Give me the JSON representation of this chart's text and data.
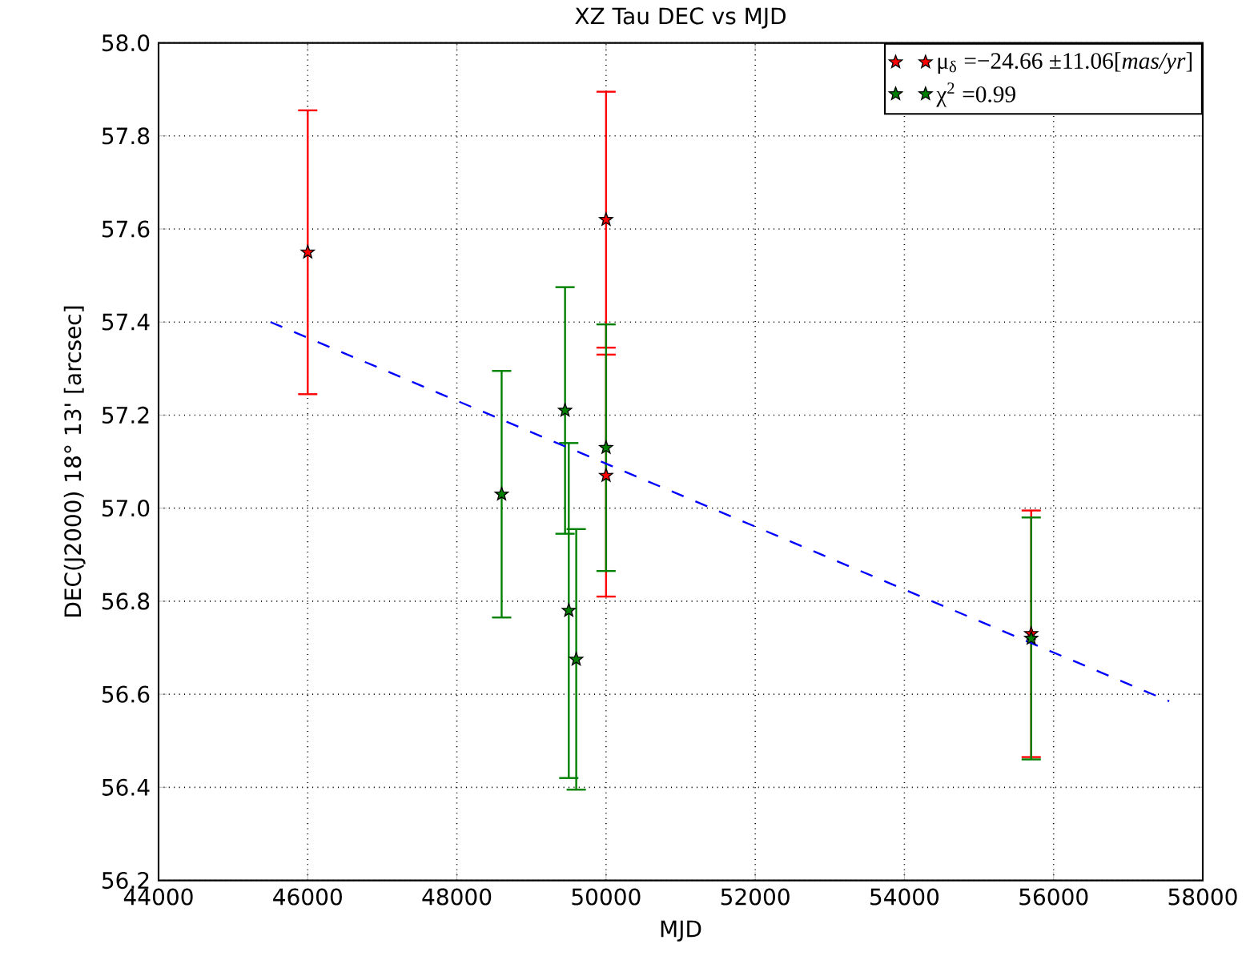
{
  "chart_data": {
    "type": "scatter",
    "title": "XZ Tau DEC vs MJD",
    "xlabel": "MJD",
    "ylabel": "DEC(J2000) 18° 13' [arcsec]",
    "xlim": [
      44000,
      58000
    ],
    "xticks": [
      44000,
      46000,
      48000,
      50000,
      52000,
      54000,
      56000,
      58000
    ],
    "ylim": [
      56.2,
      58.0
    ],
    "yticks": [
      56.2,
      56.4,
      56.6,
      56.8,
      {
        "value": 57,
        "label": "57.0"
      },
      57.2,
      57.4,
      57.6,
      57.8,
      {
        "value": 58,
        "label": "58.0"
      }
    ],
    "grid": true,
    "legend": "top right",
    "marker": "star",
    "series": [
      {
        "name": "μ$_{δ}$ =−24.66 ±11.06[*mas/yr*]",
        "color": "#ff0000",
        "x": [
          46000,
          50000,
          50000,
          55700
        ],
        "values": [
          57.55,
          57.62,
          57.07,
          56.73
        ],
        "errors": [
          0.305,
          0.275,
          0.26,
          0.265
        ]
      },
      {
        "name": "χ$^{2}$ =0.99",
        "color": "#008000",
        "x": [
          48600,
          49450,
          49500,
          49600,
          50000,
          55700
        ],
        "values": [
          57.03,
          57.21,
          56.78,
          56.675,
          57.13,
          56.72
        ],
        "errors": [
          0.265,
          0.265,
          0.36,
          0.28,
          0.265,
          0.26
        ]
      },
      {
        "type": "line",
        "color": "#0000ff",
        "line_style": "dashed",
        "marker": "none",
        "x": [
          45500,
          57550
        ],
        "values": [
          57.4,
          56.585
        ]
      }
    ]
  }
}
